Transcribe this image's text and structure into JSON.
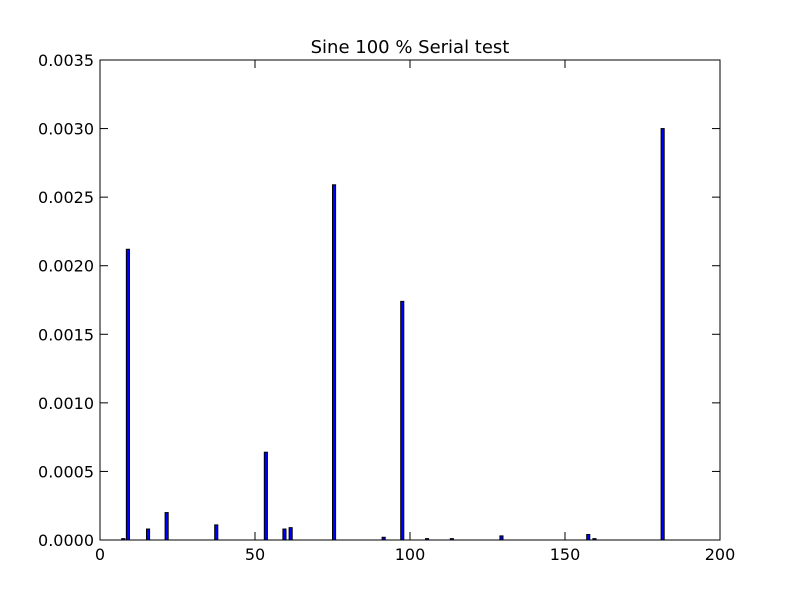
{
  "chart_data": {
    "type": "bar",
    "title": "Sine 100 % Serial test",
    "xlabel": "",
    "ylabel": "",
    "xlim": [
      0,
      200
    ],
    "ylim": [
      0,
      0.0035
    ],
    "xticks": [
      "0",
      "50",
      "100",
      "150",
      "200"
    ],
    "yticks": [
      "0.0000",
      "0.0005",
      "0.0010",
      "0.0015",
      "0.0020",
      "0.0025",
      "0.0030",
      "0.0035"
    ],
    "grid": false,
    "bar_width": 1,
    "bars": [
      {
        "x": 7.5,
        "value": 1e-05
      },
      {
        "x": 9,
        "value": 0.00212
      },
      {
        "x": 15.5,
        "value": 8e-05
      },
      {
        "x": 21.5,
        "value": 0.0002
      },
      {
        "x": 37.5,
        "value": 0.00011
      },
      {
        "x": 53.5,
        "value": 0.00064
      },
      {
        "x": 59.5,
        "value": 8e-05
      },
      {
        "x": 61.5,
        "value": 9e-05
      },
      {
        "x": 75.5,
        "value": 0.00259
      },
      {
        "x": 91.5,
        "value": 2e-05
      },
      {
        "x": 97.5,
        "value": 0.00174
      },
      {
        "x": 105.5,
        "value": 1e-05
      },
      {
        "x": 113.5,
        "value": 1e-05
      },
      {
        "x": 129.5,
        "value": 3e-05
      },
      {
        "x": 157.5,
        "value": 4e-05
      },
      {
        "x": 159.5,
        "value": 1e-05
      },
      {
        "x": 181.5,
        "value": 0.003
      }
    ]
  }
}
